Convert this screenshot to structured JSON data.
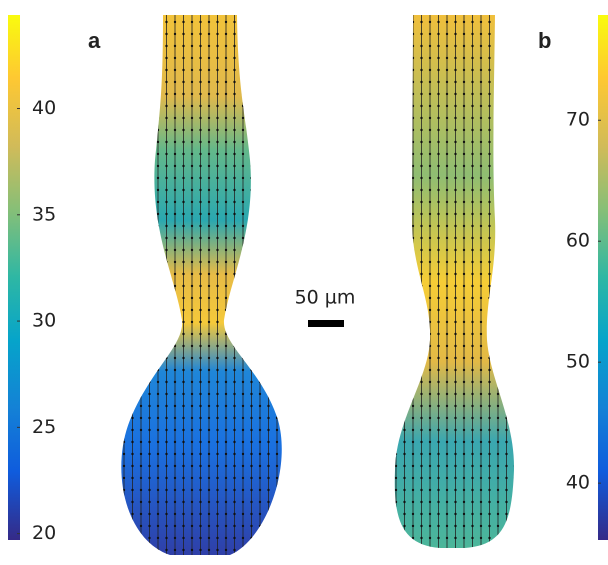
{
  "panels": [
    {
      "label": "a",
      "colorbar": {
        "lim": [
          19.7,
          44.4
        ],
        "ticks": [
          20,
          25,
          30,
          35,
          40
        ]
      }
    },
    {
      "label": "b",
      "colorbar": {
        "lim": [
          35.3,
          78.7
        ],
        "ticks": [
          40,
          50,
          60,
          70
        ]
      }
    }
  ],
  "scale_bar": {
    "label": "50 µm"
  }
}
